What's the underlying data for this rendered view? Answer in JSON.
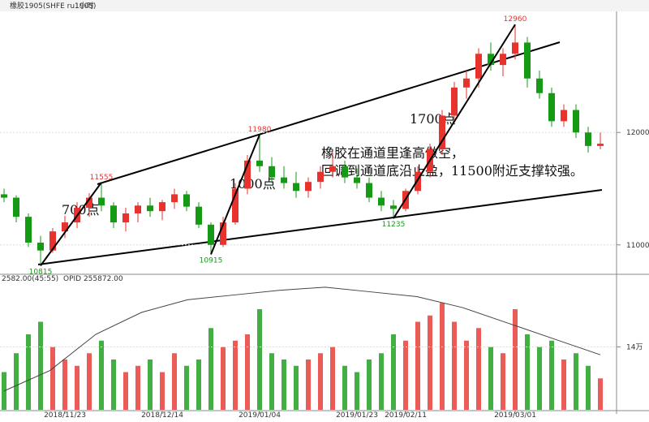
{
  "chart_data": {
    "type": "candlestick",
    "header": {
      "symbol": "橡胶1905(SHFE ru1905)",
      "period": "1小时"
    },
    "categories": [
      null,
      null,
      null,
      null,
      null,
      "2018/11/23",
      null,
      null,
      null,
      null,
      null,
      null,
      null,
      "2018/12/14",
      null,
      null,
      null,
      null,
      null,
      null,
      null,
      "2019/01/04",
      null,
      null,
      null,
      null,
      null,
      null,
      null,
      "2019/01/23",
      null,
      null,
      null,
      "2019/02/11",
      null,
      null,
      null,
      null,
      null,
      null,
      null,
      null,
      "2019/03/01",
      null,
      null,
      null,
      null,
      null,
      null,
      null
    ],
    "candles": [
      [
        11450,
        11500,
        11380,
        11420
      ],
      [
        11420,
        11440,
        11200,
        11250
      ],
      [
        11250,
        11280,
        10980,
        11020
      ],
      [
        11020,
        11080,
        10815,
        10950
      ],
      [
        10950,
        11150,
        10930,
        11120
      ],
      [
        11120,
        11260,
        11060,
        11200
      ],
      [
        11200,
        11380,
        11150,
        11330
      ],
      [
        11330,
        11460,
        11250,
        11420
      ],
      [
        11420,
        11555,
        11300,
        11350
      ],
      [
        11350,
        11380,
        11150,
        11200
      ],
      [
        11200,
        11330,
        11120,
        11280
      ],
      [
        11280,
        11380,
        11200,
        11350
      ],
      [
        11350,
        11420,
        11250,
        11300
      ],
      [
        11300,
        11400,
        11220,
        11380
      ],
      [
        11380,
        11500,
        11320,
        11450
      ],
      [
        11450,
        11480,
        11300,
        11340
      ],
      [
        11340,
        11380,
        11150,
        11180
      ],
      [
        11180,
        11200,
        10915,
        11000
      ],
      [
        11000,
        11250,
        10980,
        11200
      ],
      [
        11200,
        11550,
        11180,
        11500
      ],
      [
        11500,
        11800,
        11450,
        11750
      ],
      [
        11750,
        11980,
        11650,
        11700
      ],
      [
        11700,
        11780,
        11550,
        11600
      ],
      [
        11600,
        11700,
        11500,
        11550
      ],
      [
        11550,
        11650,
        11420,
        11480
      ],
      [
        11480,
        11600,
        11420,
        11560
      ],
      [
        11560,
        11700,
        11500,
        11650
      ],
      [
        11650,
        11820,
        11600,
        11700
      ],
      [
        11700,
        11750,
        11550,
        11600
      ],
      [
        11600,
        11680,
        11500,
        11550
      ],
      [
        11550,
        11600,
        11380,
        11420
      ],
      [
        11420,
        11480,
        11300,
        11350
      ],
      [
        11350,
        11400,
        11235,
        11320
      ],
      [
        11320,
        11500,
        11300,
        11480
      ],
      [
        11480,
        11700,
        11450,
        11650
      ],
      [
        11650,
        11900,
        11600,
        11850
      ],
      [
        11850,
        12200,
        11800,
        12150
      ],
      [
        12150,
        12450,
        12100,
        12400
      ],
      [
        12400,
        12550,
        12300,
        12480
      ],
      [
        12480,
        12750,
        12400,
        12700
      ],
      [
        12700,
        12800,
        12550,
        12600
      ],
      [
        12600,
        12750,
        12500,
        12700
      ],
      [
        12700,
        12960,
        12650,
        12800
      ],
      [
        12800,
        12850,
        12400,
        12480
      ],
      [
        12480,
        12550,
        12300,
        12350
      ],
      [
        12350,
        12400,
        12050,
        12100
      ],
      [
        12100,
        12250,
        12050,
        12200
      ],
      [
        12200,
        12250,
        11950,
        12000
      ],
      [
        12000,
        12050,
        11820,
        11880
      ],
      [
        11880,
        12000,
        11850,
        11900
      ]
    ],
    "ylim": [
      10760,
      13070
    ],
    "yticks": [
      11000,
      12000
    ],
    "up_color": "#e8322e",
    "down_color": "#149a14",
    "volume": [
      30,
      45,
      60,
      70,
      50,
      40,
      35,
      45,
      55,
      40,
      30,
      35,
      40,
      30,
      45,
      35,
      40,
      65,
      50,
      55,
      60,
      80,
      45,
      40,
      35,
      40,
      45,
      50,
      35,
      30,
      40,
      45,
      60,
      55,
      70,
      75,
      85,
      70,
      55,
      65,
      50,
      45,
      80,
      60,
      50,
      55,
      40,
      45,
      35,
      25
    ],
    "volume_lim": [
      0,
      100
    ],
    "open_interest": {
      "name": "OPID 255872.00",
      "values": [
        11.2,
        12.5,
        14.8,
        16.2,
        17.0,
        17.3,
        17.6,
        17.8,
        17.5,
        17.2,
        16.5,
        15.5,
        14.5,
        13.5
      ],
      "lim": [
        10,
        18
      ],
      "ticks": [
        {
          "value": 14,
          "label": "14万"
        }
      ]
    },
    "volume_info": "2582.00(45:55)",
    "annotations": [
      "700点",
      "1000点",
      "1700点",
      "橡胶在通道里逢高做空，",
      "回调到通道底沿止盈，11500附近支撑较强。"
    ]
  }
}
